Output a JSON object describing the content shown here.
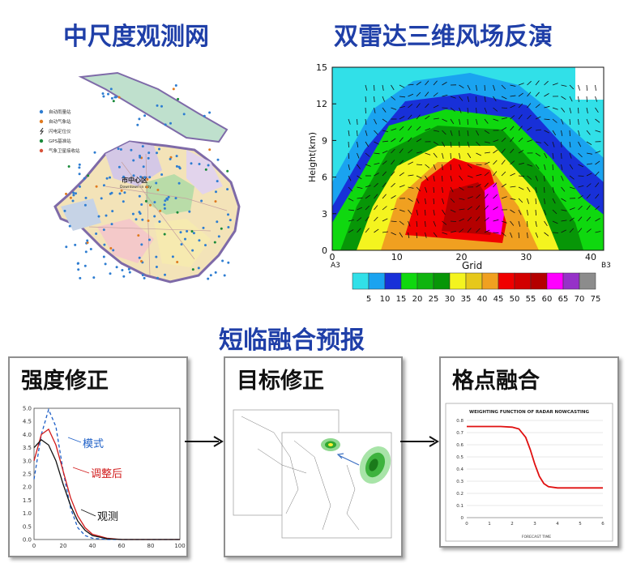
{
  "titles": {
    "network": "中尺度观测网",
    "radar": "双雷达三维风场反演",
    "nowcast": "短临融合预报"
  },
  "map": {
    "legend": [
      {
        "label": "自动雨量站",
        "color": "#2e7dd1",
        "symbol": "dot"
      },
      {
        "label": "自动气象站",
        "color": "#e07a1f",
        "symbol": "dot"
      },
      {
        "label": "闪电定位仪",
        "color": "#222222",
        "symbol": "bolt"
      },
      {
        "label": "GPS基准站",
        "color": "#1a8a3a",
        "symbol": "dot"
      },
      {
        "label": "气象卫星接收站",
        "color": "#d9533b",
        "symbol": "dish"
      }
    ],
    "city_label": "市中心区",
    "city_label_en": "Downtown in city"
  },
  "radar": {
    "ylabel": "Height(km)",
    "xlabel": "Grid",
    "yticks": [
      "0",
      "3",
      "6",
      "9",
      "12",
      "15"
    ],
    "xticks": [
      "0",
      "10",
      "20",
      "30",
      "40"
    ],
    "endpoints": [
      "A3",
      "B3"
    ],
    "colorbar_labels": [
      "5",
      "10",
      "15",
      "20",
      "25",
      "30",
      "35",
      "40",
      "45",
      "50",
      "55",
      "60",
      "65",
      "70",
      "75"
    ],
    "colorbar_colors": [
      "#31e0e8",
      "#1aa3f0",
      "#1830d8",
      "#0fd80f",
      "#0fb40f",
      "#079607",
      "#f4f41f",
      "#e6c81a",
      "#f0a020",
      "#f00000",
      "#d20000",
      "#b40000",
      "#ff00ff",
      "#9632c8",
      "#8c8c8c"
    ]
  },
  "panels": {
    "intensity": {
      "title": "强度修正",
      "legend_model": "模式",
      "legend_adjusted": "调整后",
      "legend_observed": "观测",
      "yticks": [
        "0.0",
        "0.5",
        "1.0",
        "1.5",
        "2.0",
        "2.5",
        "3.0",
        "3.5",
        "4.0",
        "4.5",
        "5.0"
      ],
      "xticks": [
        "0",
        "20",
        "40",
        "60",
        "80",
        "100"
      ]
    },
    "target": {
      "title": "目标修正"
    },
    "grid": {
      "title": "格点融合",
      "chart_title": "WEIGHTING FUNCTION OF RADAR NOWCASTING",
      "xlabel": "FORECAST TIME",
      "yticks": [
        "0",
        "0.1",
        "0.2",
        "0.3",
        "0.4",
        "0.5",
        "0.6",
        "0.7",
        "0.8"
      ],
      "xticks": [
        "0",
        "1",
        "2",
        "3",
        "4",
        "5",
        "6"
      ]
    }
  },
  "chart_data": [
    {
      "type": "line",
      "title": "",
      "x": [
        0,
        5,
        10,
        15,
        20,
        25,
        30,
        35,
        40,
        50,
        60,
        70,
        80,
        90,
        100
      ],
      "series": [
        {
          "name": "模式",
          "values": [
            2.3,
            4.0,
            4.95,
            4.3,
            2.6,
            1.2,
            0.45,
            0.15,
            0.05,
            0.0,
            0.0,
            0.0,
            0.0,
            0.0,
            0.0
          ]
        },
        {
          "name": "调整后",
          "values": [
            3.0,
            4.0,
            4.2,
            3.6,
            2.6,
            1.6,
            0.9,
            0.45,
            0.2,
            0.05,
            0.0,
            0.0,
            0.0,
            0.0,
            0.0
          ]
        },
        {
          "name": "观测",
          "values": [
            3.5,
            3.8,
            3.6,
            3.0,
            2.1,
            1.3,
            0.7,
            0.35,
            0.15,
            0.03,
            0.0,
            0.0,
            0.0,
            0.0,
            0.0
          ]
        }
      ],
      "xlim": [
        0,
        100
      ],
      "ylim": [
        0,
        5
      ]
    },
    {
      "type": "line",
      "title": "WEIGHTING FUNCTION OF RADAR NOWCASTING",
      "xlabel": "FORECAST TIME",
      "x": [
        0,
        0.5,
        1,
        1.5,
        2,
        2.3,
        2.6,
        2.8,
        3.0,
        3.2,
        3.4,
        3.6,
        4,
        4.5,
        5,
        5.5,
        6
      ],
      "series": [
        {
          "values": [
            0.75,
            0.75,
            0.75,
            0.75,
            0.745,
            0.73,
            0.66,
            0.56,
            0.44,
            0.34,
            0.28,
            0.255,
            0.245,
            0.245,
            0.245,
            0.245,
            0.245
          ]
        }
      ],
      "xlim": [
        0,
        6
      ],
      "ylim": [
        0,
        0.8
      ]
    }
  ]
}
